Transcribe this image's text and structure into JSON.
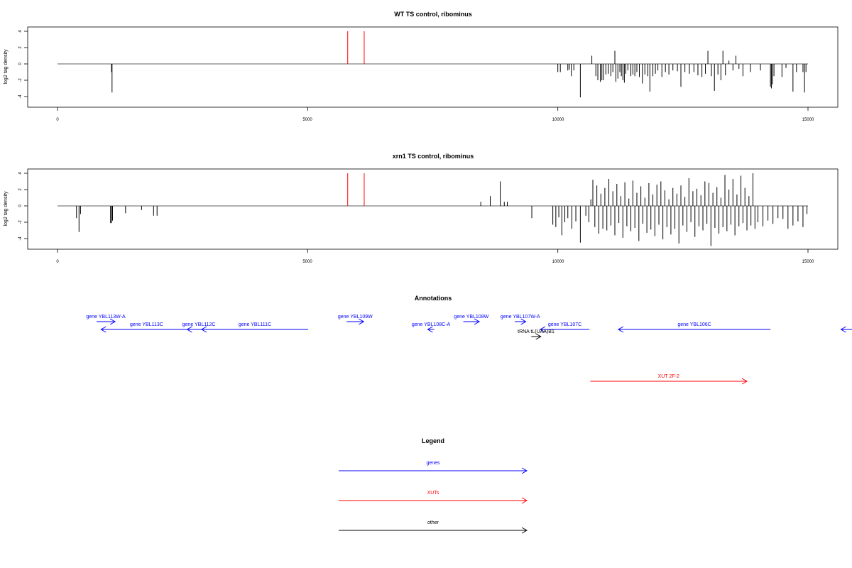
{
  "colors": {
    "genes": "#0000ff",
    "xuts": "#ff0000",
    "other": "#000000",
    "baseline": "#808080",
    "frame": "#000000"
  },
  "chart_data": [
    {
      "type": "bar",
      "title": "WT TS control, ribominus",
      "ylabel": "log2 tag density",
      "xlim": [
        -1000,
        15000
      ],
      "ylim": [
        -5,
        4.5
      ],
      "xticks": [
        "0",
        "5000",
        "10000",
        "15000"
      ],
      "yticks": [
        "4",
        "2",
        "0",
        "-2",
        "-4"
      ],
      "baseline_range": [
        0,
        15000
      ],
      "markers": [
        {
          "x": 5800,
          "y": 4
        },
        {
          "x": 6130,
          "y": 4
        }
      ],
      "bars": [
        {
          "x": 1080,
          "y": -1.0
        },
        {
          "x": 1090,
          "y": -3.5
        },
        {
          "x": 10000,
          "y": -1.0
        },
        {
          "x": 10050,
          "y": -1.0
        },
        {
          "x": 10200,
          "y": -0.8
        },
        {
          "x": 10230,
          "y": -0.7
        },
        {
          "x": 10270,
          "y": -1.5
        },
        {
          "x": 10320,
          "y": -0.8
        },
        {
          "x": 10450,
          "y": -4.1
        },
        {
          "x": 10680,
          "y": 1.0
        },
        {
          "x": 10760,
          "y": -1.5
        },
        {
          "x": 10800,
          "y": -2.0
        },
        {
          "x": 10850,
          "y": -2.2
        },
        {
          "x": 10880,
          "y": -2.0
        },
        {
          "x": 10910,
          "y": -2.0
        },
        {
          "x": 10960,
          "y": -1.3
        },
        {
          "x": 11010,
          "y": -1.2
        },
        {
          "x": 11060,
          "y": -1.5
        },
        {
          "x": 11100,
          "y": -1.0
        },
        {
          "x": 11140,
          "y": 1.6
        },
        {
          "x": 11160,
          "y": -2.2
        },
        {
          "x": 11200,
          "y": -1.8
        },
        {
          "x": 11240,
          "y": -1.0
        },
        {
          "x": 11270,
          "y": -1.5
        },
        {
          "x": 11300,
          "y": -2.0
        },
        {
          "x": 11330,
          "y": -2.3
        },
        {
          "x": 11360,
          "y": -1.2
        },
        {
          "x": 11400,
          "y": -0.8
        },
        {
          "x": 11460,
          "y": -1.5
        },
        {
          "x": 11500,
          "y": -1.3
        },
        {
          "x": 11540,
          "y": -1.5
        },
        {
          "x": 11580,
          "y": -1.0
        },
        {
          "x": 11630,
          "y": -1.6
        },
        {
          "x": 11690,
          "y": -2.4
        },
        {
          "x": 11740,
          "y": -1.3
        },
        {
          "x": 11800,
          "y": -1.5
        },
        {
          "x": 11840,
          "y": -3.4
        },
        {
          "x": 11900,
          "y": -1.5
        },
        {
          "x": 11950,
          "y": -1.2
        },
        {
          "x": 12000,
          "y": -0.8
        },
        {
          "x": 12080,
          "y": -1.6
        },
        {
          "x": 12150,
          "y": -1.0
        },
        {
          "x": 12220,
          "y": -1.3
        },
        {
          "x": 12300,
          "y": -0.8
        },
        {
          "x": 12390,
          "y": -0.9
        },
        {
          "x": 12460,
          "y": -2.8
        },
        {
          "x": 12540,
          "y": -1.0
        },
        {
          "x": 12630,
          "y": -1.2
        },
        {
          "x": 12720,
          "y": -1.0
        },
        {
          "x": 12800,
          "y": -1.4
        },
        {
          "x": 12880,
          "y": -1.6
        },
        {
          "x": 12950,
          "y": -1.2
        },
        {
          "x": 13000,
          "y": 1.6
        },
        {
          "x": 13070,
          "y": -1.5
        },
        {
          "x": 13130,
          "y": -3.3
        },
        {
          "x": 13200,
          "y": -1.3
        },
        {
          "x": 13260,
          "y": -2.0
        },
        {
          "x": 13300,
          "y": 1.6
        },
        {
          "x": 13350,
          "y": -1.4
        },
        {
          "x": 13420,
          "y": 0.4
        },
        {
          "x": 13500,
          "y": -0.8
        },
        {
          "x": 13560,
          "y": 1.0
        },
        {
          "x": 13620,
          "y": -0.6
        },
        {
          "x": 13700,
          "y": -1.5
        },
        {
          "x": 13850,
          "y": -1.0
        },
        {
          "x": 14050,
          "y": -0.8
        },
        {
          "x": 14250,
          "y": -2.8
        },
        {
          "x": 14270,
          "y": -3.0
        },
        {
          "x": 14290,
          "y": -2.5
        },
        {
          "x": 14320,
          "y": -1.5
        },
        {
          "x": 14480,
          "y": -1.6
        },
        {
          "x": 14560,
          "y": -0.5
        },
        {
          "x": 14700,
          "y": -3.4
        },
        {
          "x": 14770,
          "y": -1.0
        },
        {
          "x": 14900,
          "y": -1.0
        },
        {
          "x": 14930,
          "y": -3.5
        },
        {
          "x": 14960,
          "y": -1.0
        }
      ]
    },
    {
      "type": "bar",
      "title": "xrn1 TS control, ribominus",
      "ylabel": "log2 tag density",
      "xlim": [
        -1000,
        15000
      ],
      "ylim": [
        -5,
        4.5
      ],
      "xticks": [
        "0",
        "5000",
        "10000",
        "15000"
      ],
      "yticks": [
        "4",
        "2",
        "0",
        "-2",
        "-4"
      ],
      "baseline_range": [
        0,
        15000
      ],
      "markers": [
        {
          "x": 5800,
          "y": 4
        },
        {
          "x": 6130,
          "y": 4
        }
      ],
      "bars": [
        {
          "x": 380,
          "y": -1.5
        },
        {
          "x": 430,
          "y": -3.2
        },
        {
          "x": 460,
          "y": -1.0
        },
        {
          "x": 1060,
          "y": -2.1
        },
        {
          "x": 1080,
          "y": -2.1
        },
        {
          "x": 1100,
          "y": -1.8
        },
        {
          "x": 1360,
          "y": -0.9
        },
        {
          "x": 1680,
          "y": -0.5
        },
        {
          "x": 1920,
          "y": -1.2
        },
        {
          "x": 1990,
          "y": -1.2
        },
        {
          "x": 8460,
          "y": 0.5
        },
        {
          "x": 8650,
          "y": 1.2
        },
        {
          "x": 8850,
          "y": 3.0
        },
        {
          "x": 8930,
          "y": 0.5
        },
        {
          "x": 8990,
          "y": 0.5
        },
        {
          "x": 9480,
          "y": -1.5
        },
        {
          "x": 9900,
          "y": -2.3
        },
        {
          "x": 9960,
          "y": -2.6
        },
        {
          "x": 10020,
          "y": -1.4
        },
        {
          "x": 10080,
          "y": -3.6
        },
        {
          "x": 10140,
          "y": -2.0
        },
        {
          "x": 10200,
          "y": -1.5
        },
        {
          "x": 10280,
          "y": -2.8
        },
        {
          "x": 10360,
          "y": -1.9
        },
        {
          "x": 10450,
          "y": -4.5
        },
        {
          "x": 10560,
          "y": -1.2
        },
        {
          "x": 10620,
          "y": -2.0
        },
        {
          "x": 10660,
          "y": 0.8
        },
        {
          "x": 10700,
          "y": 3.2
        },
        {
          "x": 10740,
          "y": -2.6
        },
        {
          "x": 10780,
          "y": 2.5
        },
        {
          "x": 10820,
          "y": -3.4
        },
        {
          "x": 10860,
          "y": 1.5
        },
        {
          "x": 10900,
          "y": -2.8
        },
        {
          "x": 10940,
          "y": 2.2
        },
        {
          "x": 10980,
          "y": -3.0
        },
        {
          "x": 11020,
          "y": 3.3
        },
        {
          "x": 11060,
          "y": -2.4
        },
        {
          "x": 11100,
          "y": 1.8
        },
        {
          "x": 11140,
          "y": -3.6
        },
        {
          "x": 11180,
          "y": 2.7
        },
        {
          "x": 11220,
          "y": -2.1
        },
        {
          "x": 11260,
          "y": 1.2
        },
        {
          "x": 11300,
          "y": -3.9
        },
        {
          "x": 11340,
          "y": 2.9
        },
        {
          "x": 11380,
          "y": -2.5
        },
        {
          "x": 11420,
          "y": 0.9
        },
        {
          "x": 11460,
          "y": -3.1
        },
        {
          "x": 11500,
          "y": 3.1
        },
        {
          "x": 11540,
          "y": -2.7
        },
        {
          "x": 11580,
          "y": 1.6
        },
        {
          "x": 11620,
          "y": -4.3
        },
        {
          "x": 11660,
          "y": 2.4
        },
        {
          "x": 11700,
          "y": -2.2
        },
        {
          "x": 11740,
          "y": 1.0
        },
        {
          "x": 11780,
          "y": -3.3
        },
        {
          "x": 11820,
          "y": 2.8
        },
        {
          "x": 11860,
          "y": -2.9
        },
        {
          "x": 11900,
          "y": 1.4
        },
        {
          "x": 11940,
          "y": -3.7
        },
        {
          "x": 11980,
          "y": 2.6
        },
        {
          "x": 12020,
          "y": -2.3
        },
        {
          "x": 12060,
          "y": 3.0
        },
        {
          "x": 12100,
          "y": -4.1
        },
        {
          "x": 12140,
          "y": 1.9
        },
        {
          "x": 12180,
          "y": -2.6
        },
        {
          "x": 12220,
          "y": 0.8
        },
        {
          "x": 12260,
          "y": -3.5
        },
        {
          "x": 12300,
          "y": 2.2
        },
        {
          "x": 12340,
          "y": -2.8
        },
        {
          "x": 12380,
          "y": 1.5
        },
        {
          "x": 12420,
          "y": -4.6
        },
        {
          "x": 12460,
          "y": 2.5
        },
        {
          "x": 12500,
          "y": -2.4
        },
        {
          "x": 12540,
          "y": 1.1
        },
        {
          "x": 12580,
          "y": -3.2
        },
        {
          "x": 12620,
          "y": 3.4
        },
        {
          "x": 12660,
          "y": -2.0
        },
        {
          "x": 12700,
          "y": 1.8
        },
        {
          "x": 12740,
          "y": -3.8
        },
        {
          "x": 12780,
          "y": 2.1
        },
        {
          "x": 12820,
          "y": -2.5
        },
        {
          "x": 12860,
          "y": 1.3
        },
        {
          "x": 12900,
          "y": -3.0
        },
        {
          "x": 12940,
          "y": 3.0
        },
        {
          "x": 12980,
          "y": -2.2
        },
        {
          "x": 13020,
          "y": 2.8
        },
        {
          "x": 13060,
          "y": -4.9
        },
        {
          "x": 13100,
          "y": 1.6
        },
        {
          "x": 13140,
          "y": -2.7
        },
        {
          "x": 13180,
          "y": 2.3
        },
        {
          "x": 13220,
          "y": -3.4
        },
        {
          "x": 13260,
          "y": 1.0
        },
        {
          "x": 13300,
          "y": -2.6
        },
        {
          "x": 13340,
          "y": 3.8
        },
        {
          "x": 13380,
          "y": -3.1
        },
        {
          "x": 13420,
          "y": 2.0
        },
        {
          "x": 13460,
          "y": -2.3
        },
        {
          "x": 13500,
          "y": 3.3
        },
        {
          "x": 13540,
          "y": -3.6
        },
        {
          "x": 13580,
          "y": 1.4
        },
        {
          "x": 13620,
          "y": -2.5
        },
        {
          "x": 13660,
          "y": 3.7
        },
        {
          "x": 13700,
          "y": -2.1
        },
        {
          "x": 13740,
          "y": 2.2
        },
        {
          "x": 13780,
          "y": -3.0
        },
        {
          "x": 13820,
          "y": 1.2
        },
        {
          "x": 13860,
          "y": -2.4
        },
        {
          "x": 13900,
          "y": 4.0
        },
        {
          "x": 13940,
          "y": -2.8
        },
        {
          "x": 14000,
          "y": -2.0
        },
        {
          "x": 14100,
          "y": -2.5
        },
        {
          "x": 14200,
          "y": -1.8
        },
        {
          "x": 14300,
          "y": -2.2
        },
        {
          "x": 14400,
          "y": -1.5
        },
        {
          "x": 14500,
          "y": -1.6
        },
        {
          "x": 14600,
          "y": -2.8
        },
        {
          "x": 14700,
          "y": -2.4
        },
        {
          "x": 14800,
          "y": -1.9
        },
        {
          "x": 14900,
          "y": -2.6
        },
        {
          "x": 14980,
          "y": -1.0
        }
      ]
    }
  ],
  "annotations": {
    "title": "Annotations",
    "features": [
      {
        "label": "gene YBL113W-A",
        "kind": "genes",
        "start": 780,
        "end": 1150,
        "strand": "+",
        "row": 0
      },
      {
        "label": "gene YBL113C",
        "kind": "genes",
        "start": 2690,
        "end": 870,
        "strand": "-",
        "row": 1
      },
      {
        "label": "gene YBL112C",
        "kind": "genes",
        "start": 3060,
        "end": 2590,
        "strand": "-",
        "row": 1
      },
      {
        "label": "gene YBL111C",
        "kind": "genes",
        "start": 5010,
        "end": 2880,
        "strand": "-",
        "row": 1
      },
      {
        "label": "gene YBL109W",
        "kind": "genes",
        "start": 5780,
        "end": 6120,
        "strand": "+",
        "row": 0
      },
      {
        "label": "gene YBL108C-A",
        "kind": "genes",
        "start": 7530,
        "end": 7400,
        "strand": "-",
        "row": 1
      },
      {
        "label": "gene YBL108W",
        "kind": "genes",
        "start": 8110,
        "end": 8430,
        "strand": "+",
        "row": 0
      },
      {
        "label": "gene YBL107W-A",
        "kind": "genes",
        "start": 9140,
        "end": 9360,
        "strand": "+",
        "row": 0
      },
      {
        "label": "gene YBL107C",
        "kind": "genes",
        "start": 10630,
        "end": 9650,
        "strand": "-",
        "row": 1
      },
      {
        "label": "tRNA tL(UAA)B1",
        "kind": "other",
        "start": 9470,
        "end": 9660,
        "strand": "+",
        "row": 2
      },
      {
        "label": "gene YBL106C",
        "kind": "genes",
        "start": 14250,
        "end": 11210,
        "strand": "-",
        "row": 1
      },
      {
        "label": "",
        "kind": "genes",
        "start": 18500,
        "end": 15660,
        "strand": "-",
        "row": 1
      },
      {
        "label": "XUT 2F-2",
        "kind": "xuts",
        "start": 10650,
        "end": 13780,
        "strand": "+",
        "row": 3
      }
    ]
  },
  "legend": {
    "title": "Legend",
    "items": [
      {
        "label": "genes",
        "kind": "genes"
      },
      {
        "label": "XUTs",
        "kind": "xuts"
      },
      {
        "label": "other",
        "kind": "other"
      }
    ]
  }
}
